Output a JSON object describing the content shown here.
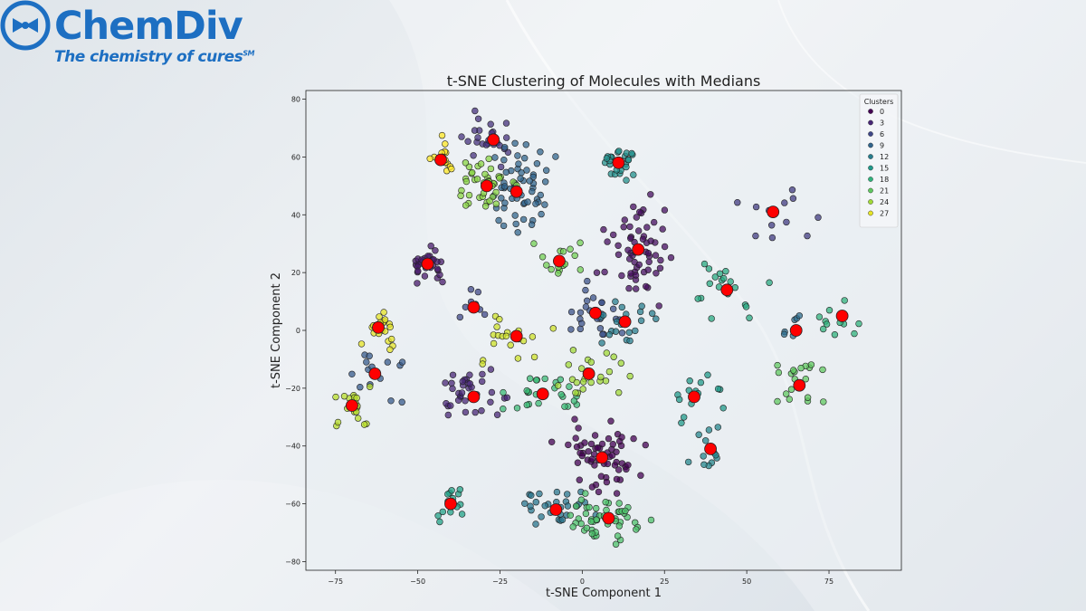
{
  "brand": {
    "name": "ChemDiv",
    "tagline": "The chemistry of cures",
    "tagline_mark": "SM"
  },
  "colors": {
    "brand": "#1d6fc2",
    "median": "#ff0000"
  },
  "chart_data": {
    "type": "scatter",
    "title": "t-SNE Clustering of Molecules with Medians",
    "xlabel": "t-SNE Component 1",
    "ylabel": "t-SNE Component 2",
    "xlim": [
      -84,
      97
    ],
    "ylim": [
      -83,
      83
    ],
    "xticks": [
      -75,
      -50,
      -25,
      0,
      25,
      50,
      75
    ],
    "yticks": [
      -80,
      -60,
      -40,
      -20,
      0,
      20,
      40,
      60,
      80
    ],
    "grid": false,
    "colormap": "viridis",
    "legend": {
      "title": "Clusters",
      "position": "top-right",
      "entries": [
        "0",
        "3",
        "6",
        "9",
        "12",
        "15",
        "18",
        "21",
        "24",
        "27"
      ]
    },
    "clusters": [
      {
        "id": 0,
        "median": [
          6,
          -44
        ],
        "n": 60,
        "spread": [
          6,
          6
        ]
      },
      {
        "id": 1,
        "median": [
          17,
          28
        ],
        "n": 60,
        "spread": [
          5,
          8
        ]
      },
      {
        "id": 2,
        "median": [
          -47,
          23
        ],
        "n": 30,
        "spread": [
          3,
          3
        ]
      },
      {
        "id": 3,
        "median": [
          -33,
          -23
        ],
        "n": 35,
        "spread": [
          5,
          4
        ]
      },
      {
        "id": 4,
        "median": [
          -27,
          66
        ],
        "n": 25,
        "spread": [
          4,
          4
        ]
      },
      {
        "id": 5,
        "median": [
          58,
          41
        ],
        "n": 12,
        "spread": [
          8,
          6
        ]
      },
      {
        "id": 6,
        "median": [
          -33,
          8
        ],
        "n": 8,
        "spread": [
          3,
          3
        ]
      },
      {
        "id": 7,
        "median": [
          4,
          6
        ],
        "n": 25,
        "spread": [
          5,
          5
        ]
      },
      {
        "id": 8,
        "median": [
          -63,
          -15
        ],
        "n": 15,
        "spread": [
          4,
          5
        ]
      },
      {
        "id": 9,
        "median": [
          -20,
          48
        ],
        "n": 60,
        "spread": [
          5,
          8
        ]
      },
      {
        "id": 10,
        "median": [
          65,
          0
        ],
        "n": 8,
        "spread": [
          4,
          4
        ]
      },
      {
        "id": 11,
        "median": [
          -8,
          -62
        ],
        "n": 30,
        "spread": [
          5,
          4
        ]
      },
      {
        "id": 12,
        "median": [
          13,
          3
        ],
        "n": 20,
        "spread": [
          6,
          4
        ]
      },
      {
        "id": 13,
        "median": [
          39,
          -41
        ],
        "n": 12,
        "spread": [
          3,
          4
        ]
      },
      {
        "id": 14,
        "median": [
          11,
          58
        ],
        "n": 25,
        "spread": [
          3,
          3
        ]
      },
      {
        "id": 15,
        "median": [
          34,
          -23
        ],
        "n": 15,
        "spread": [
          4,
          4
        ]
      },
      {
        "id": 16,
        "median": [
          -40,
          -60
        ],
        "n": 15,
        "spread": [
          3,
          4
        ]
      },
      {
        "id": 17,
        "median": [
          44,
          14
        ],
        "n": 20,
        "spread": [
          6,
          6
        ]
      },
      {
        "id": 18,
        "median": [
          79,
          5
        ],
        "n": 12,
        "spread": [
          3,
          4
        ]
      },
      {
        "id": 19,
        "median": [
          -12,
          -22
        ],
        "n": 25,
        "spread": [
          5,
          4
        ]
      },
      {
        "id": 20,
        "median": [
          8,
          -65
        ],
        "n": 50,
        "spread": [
          6,
          5
        ]
      },
      {
        "id": 21,
        "median": [
          66,
          -19
        ],
        "n": 20,
        "spread": [
          5,
          5
        ]
      },
      {
        "id": 22,
        "median": [
          -7,
          24
        ],
        "n": 15,
        "spread": [
          4,
          4
        ]
      },
      {
        "id": 23,
        "median": [
          -29,
          50
        ],
        "n": 40,
        "spread": [
          5,
          5
        ]
      },
      {
        "id": 24,
        "median": [
          2,
          -15
        ],
        "n": 25,
        "spread": [
          5,
          5
        ]
      },
      {
        "id": 25,
        "median": [
          -70,
          -26
        ],
        "n": 20,
        "spread": [
          4,
          4
        ]
      },
      {
        "id": 26,
        "median": [
          -20,
          -2
        ],
        "n": 20,
        "spread": [
          6,
          5
        ]
      },
      {
        "id": 27,
        "median": [
          -62,
          1
        ],
        "n": 20,
        "spread": [
          3,
          3
        ]
      },
      {
        "id": 28,
        "median": [
          -43,
          59
        ],
        "n": 15,
        "spread": [
          3,
          3
        ]
      }
    ]
  }
}
